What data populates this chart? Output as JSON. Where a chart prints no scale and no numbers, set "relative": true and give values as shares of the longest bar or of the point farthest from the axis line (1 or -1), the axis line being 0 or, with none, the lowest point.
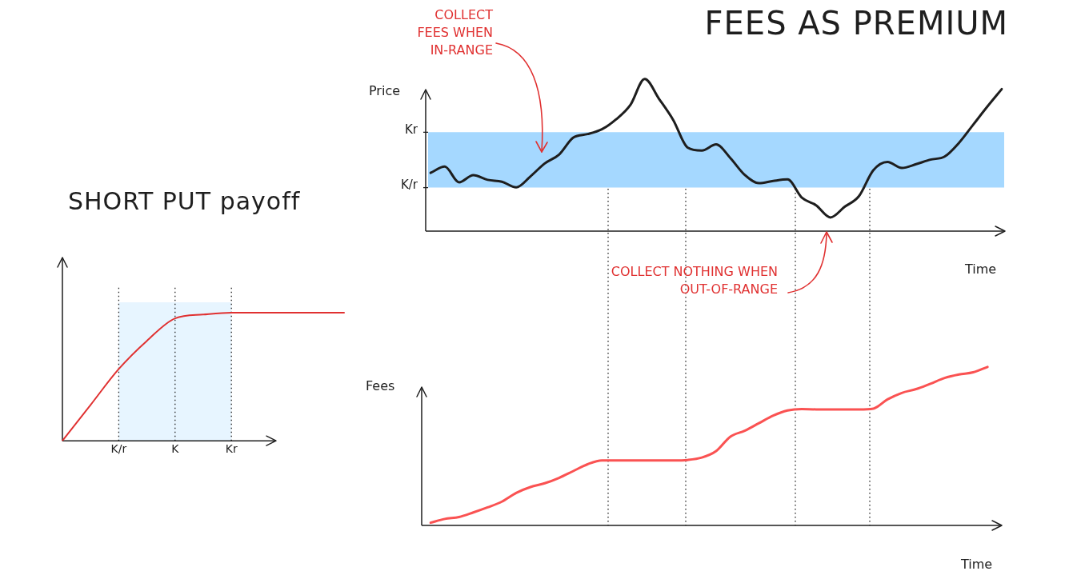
{
  "chart_data": [
    {
      "type": "line",
      "title": "SHORT PUT payoff",
      "relative": true,
      "categories": [
        null,
        null,
        "K/r",
        null,
        "K",
        null,
        "Kr",
        null,
        null,
        null,
        null
      ],
      "series": [
        {
          "color": "#e03131",
          "values": [
            0,
            0.28,
            0.56,
            0.78,
            0.955,
            0.985,
            1.0,
            1.0,
            1.0,
            1.0,
            1.0
          ]
        }
      ],
      "bands": [
        {
          "axis": "x",
          "from": "K/r",
          "to": "Kr",
          "color": "#e7f5ff"
        }
      ],
      "ref_lines": [
        {
          "axis": "x",
          "value": "K/r",
          "line_style": "dotted"
        },
        {
          "axis": "x",
          "value": "K",
          "line_style": "dotted"
        },
        {
          "axis": "x",
          "value": "Kr",
          "line_style": "dotted"
        }
      ],
      "grid": false,
      "legend": false,
      "marker": "none",
      "line_style": "solid"
    },
    {
      "type": "line",
      "title": "FEES AS PREMIUM",
      "ylabel": "Price",
      "xlabel": "Time",
      "relative": true,
      "categories": [
        null,
        null,
        null,
        null,
        null,
        null,
        null,
        null,
        null,
        null,
        null,
        null,
        null,
        null,
        null,
        null,
        null,
        null,
        null,
        null,
        null,
        null,
        null,
        null,
        null,
        null,
        null,
        null,
        null,
        null,
        null,
        null,
        null,
        null,
        null,
        null,
        null,
        null,
        null,
        null,
        null
      ],
      "series": [
        {
          "color": "#1e1e1e",
          "values": [
            0.383,
            0.424,
            0.321,
            0.368,
            0.337,
            0.325,
            0.288,
            0.36,
            0.445,
            0.503,
            0.615,
            0.638,
            0.67,
            0.735,
            0.83,
            1.0,
            0.87,
            0.73,
            0.55,
            0.53,
            0.57,
            0.48,
            0.37,
            0.315,
            0.33,
            0.34,
            0.22,
            0.17,
            0.09,
            0.16,
            0.23,
            0.4,
            0.455,
            0.415,
            0.44,
            0.47,
            0.49,
            0.58,
            0.7,
            0.82,
            0.934
          ]
        }
      ],
      "bands": [
        {
          "axis": "y",
          "from": 0.286,
          "to": 0.65,
          "color": "#a5d8ff"
        }
      ],
      "ref_lines": [
        {
          "axis": "y",
          "value": 0.65,
          "label": "Kr"
        },
        {
          "axis": "y",
          "value": 0.286,
          "label": "K/r"
        }
      ],
      "annotations": [
        "COLLECT FEES WHEN IN-RANGE",
        "COLLECT NOTHING WHEN OUT-OF-RANGE"
      ],
      "grid": false,
      "legend": false,
      "marker": "none",
      "line_style": "solid"
    },
    {
      "type": "line",
      "ylabel": "Fees",
      "xlabel": "Time",
      "relative": true,
      "categories": [
        null,
        null,
        null,
        null,
        null,
        null,
        null,
        null,
        null,
        null,
        null,
        null,
        null,
        null,
        null,
        null,
        null,
        null,
        null,
        null,
        null,
        null,
        null,
        null,
        null,
        null,
        null,
        null,
        null,
        null,
        null,
        null,
        null,
        null,
        null,
        null,
        null,
        null,
        null,
        null,
        null
      ],
      "series": [
        {
          "color": "#fa5252",
          "values": [
            0.017,
            0.041,
            0.053,
            0.082,
            0.114,
            0.15,
            0.205,
            0.242,
            0.266,
            0.3,
            0.343,
            0.386,
            0.41,
            0.41,
            0.41,
            0.41,
            0.41,
            0.41,
            0.413,
            0.428,
            0.469,
            0.56,
            0.597,
            0.645,
            0.693,
            0.725,
            0.734,
            0.732,
            0.732,
            0.732,
            0.732,
            0.737,
            0.795,
            0.836,
            0.86,
            0.894,
            0.93,
            0.952,
            0.966,
            1.0,
            null
          ]
        }
      ],
      "grid": false,
      "legend": false,
      "marker": "none",
      "line_style": "solid"
    }
  ]
}
